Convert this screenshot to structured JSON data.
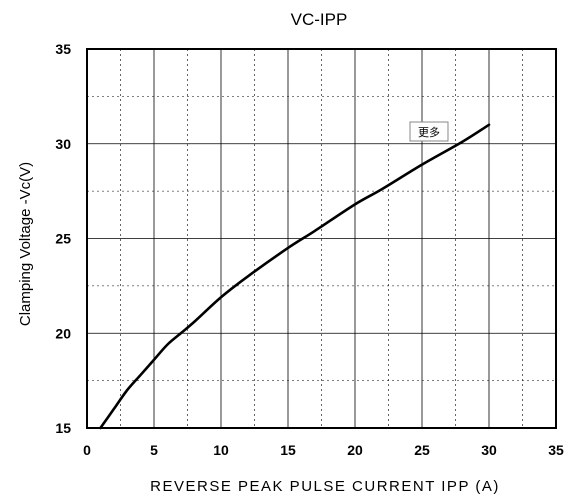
{
  "chart_data": {
    "type": "line",
    "title": "VC-IPP",
    "xlabel": "REVERSE PEAK PULSE CURRENT IPP (A)",
    "ylabel": "Clamping Voltage -Vc(V)",
    "xlim": [
      0,
      35
    ],
    "ylim": [
      15,
      35
    ],
    "xticks": [
      "0",
      "5",
      "10",
      "15",
      "20",
      "25",
      "30",
      "35"
    ],
    "yticks": [
      "15",
      "20",
      "25",
      "30",
      "35"
    ],
    "grid": "major solid, minor dashed",
    "series": [
      {
        "color": "#000000",
        "x": [
          1,
          2,
          3,
          4,
          5,
          6,
          7,
          8,
          10,
          12,
          15,
          17,
          20,
          22,
          25,
          28,
          30
        ],
        "y": [
          15.0,
          16.0,
          17.0,
          17.8,
          18.6,
          19.4,
          20.0,
          20.6,
          21.9,
          23.0,
          24.5,
          25.4,
          26.8,
          27.6,
          28.9,
          30.1,
          31.0
        ]
      }
    ]
  },
  "tooltip": {
    "label": "更多"
  }
}
